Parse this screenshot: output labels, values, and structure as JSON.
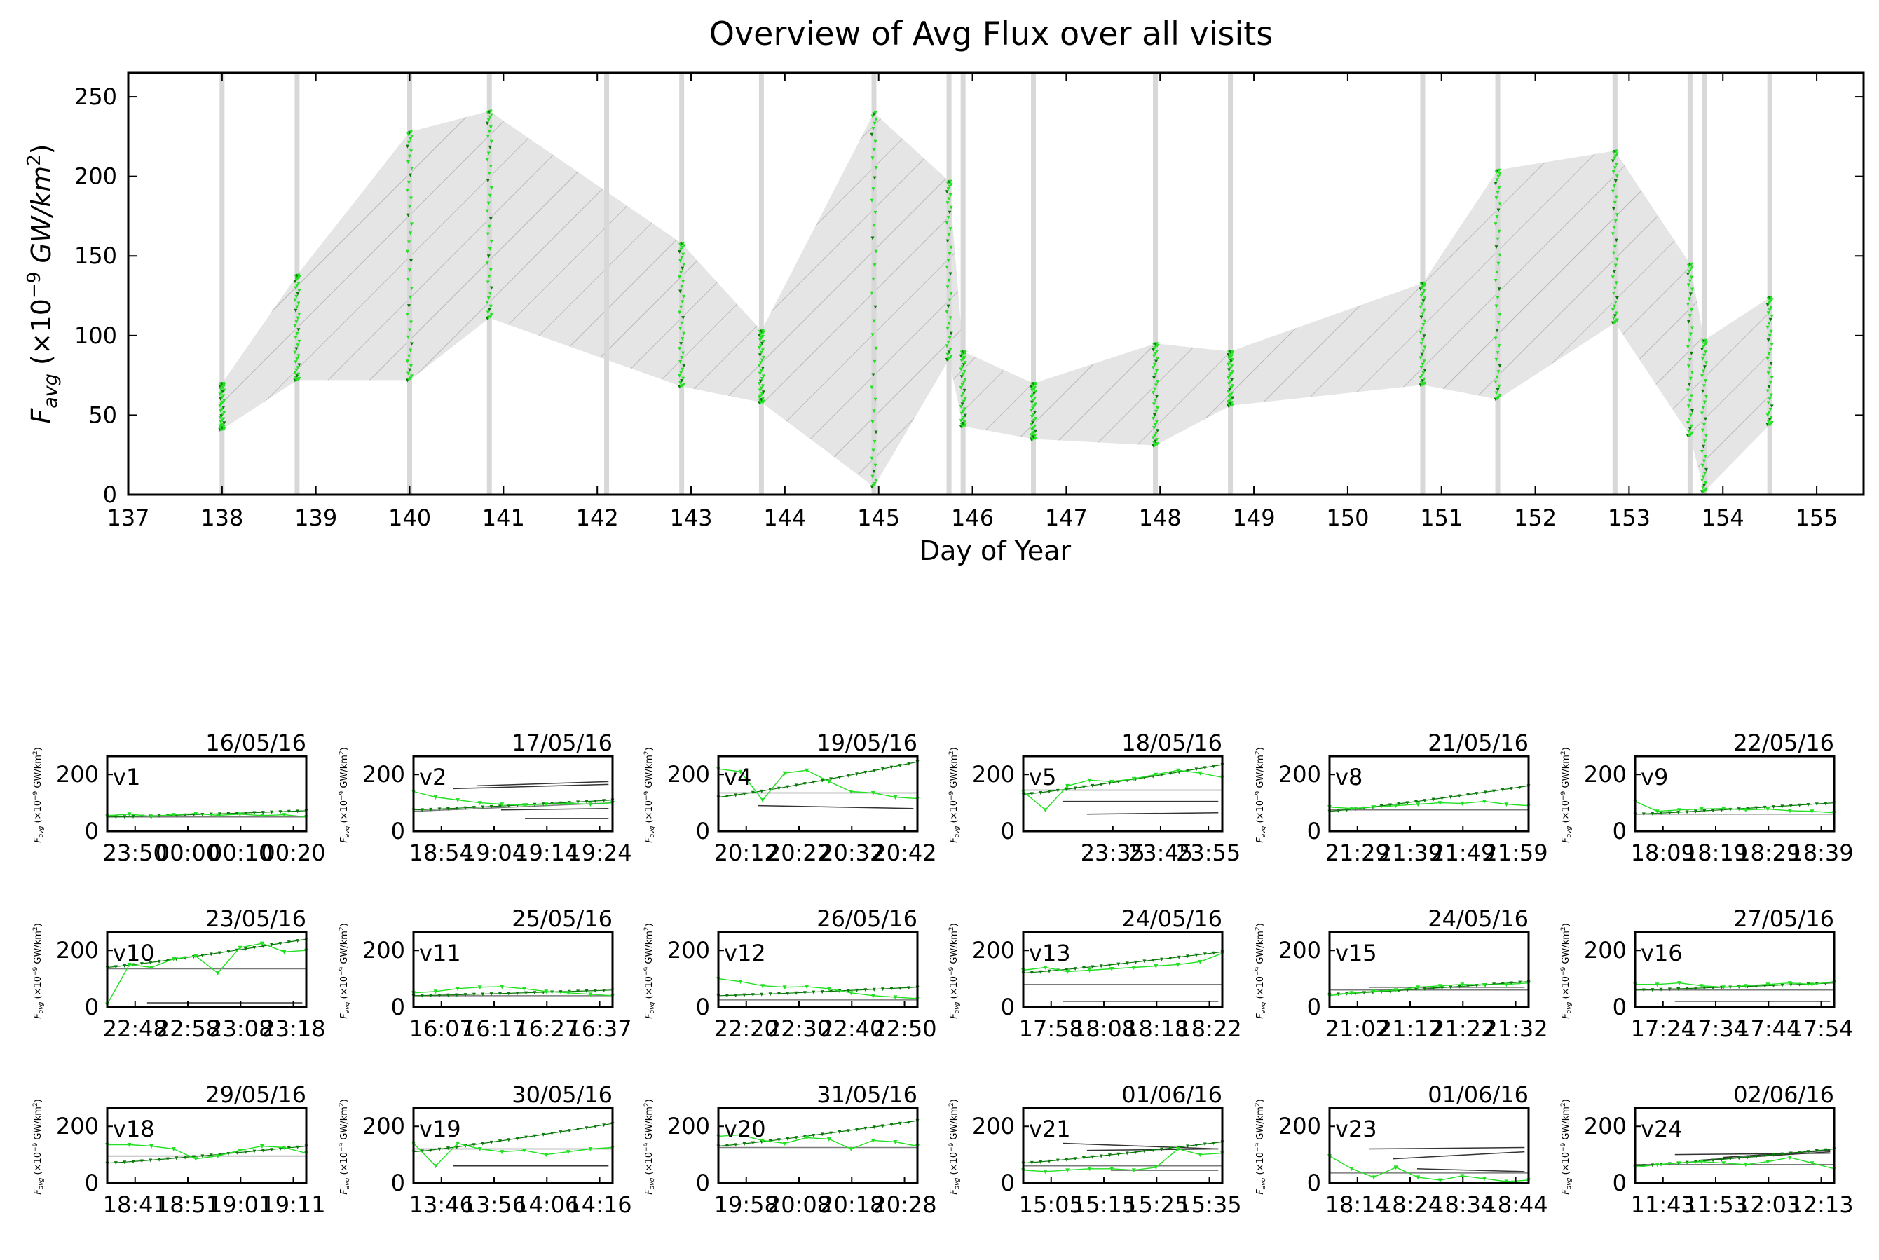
{
  "colors": {
    "marker": "#22e022",
    "marker_dark": "#0a7a0a",
    "band": "#e5e5e5",
    "hatch": "#b4b4b4",
    "visit_line": "#d8d8d8",
    "ref_line": "#333333"
  },
  "chart_data": [
    {
      "type": "scatter",
      "title": "Overview of Avg Flux over all visits",
      "xlabel": "Day of Year",
      "ylabel": "F_avg (×10^-9 GW/km^2)",
      "xlim": [
        137,
        155.5
      ],
      "ylim": [
        0,
        265
      ],
      "xticks": [
        "137",
        "138",
        "139",
        "140",
        "141",
        "142",
        "143",
        "144",
        "145",
        "146",
        "147",
        "148",
        "149",
        "150",
        "151",
        "152",
        "153",
        "154",
        "155"
      ],
      "yticks": [
        "0",
        "50",
        "100",
        "150",
        "200",
        "250"
      ],
      "visit_days": [
        138.0,
        138.8,
        140.0,
        140.85,
        142.1,
        142.9,
        143.75,
        144.95,
        145.75,
        145.9,
        146.65,
        147.95,
        148.75,
        150.8,
        151.6,
        152.85,
        153.65,
        153.8,
        154.5
      ],
      "points": [
        {
          "day": 138.0,
          "min": 41,
          "max": 70
        },
        {
          "day": 138.8,
          "min": 72,
          "max": 138
        },
        {
          "day": 140.0,
          "min": 72,
          "max": 228
        },
        {
          "day": 140.85,
          "min": 111,
          "max": 241
        },
        {
          "day": 142.9,
          "min": 68,
          "max": 158
        },
        {
          "day": 143.75,
          "min": 58,
          "max": 103
        },
        {
          "day": 144.95,
          "min": 5,
          "max": 240
        },
        {
          "day": 145.75,
          "min": 85,
          "max": 197
        },
        {
          "day": 145.9,
          "min": 43,
          "max": 90
        },
        {
          "day": 146.65,
          "min": 35,
          "max": 70
        },
        {
          "day": 147.95,
          "min": 31,
          "max": 95
        },
        {
          "day": 148.75,
          "min": 56,
          "max": 90
        },
        {
          "day": 150.8,
          "min": 69,
          "max": 133
        },
        {
          "day": 151.6,
          "min": 60,
          "max": 204
        },
        {
          "day": 152.85,
          "min": 108,
          "max": 216
        },
        {
          "day": 153.65,
          "min": 37,
          "max": 145
        },
        {
          "day": 153.8,
          "min": 2,
          "max": 97
        },
        {
          "day": 154.5,
          "min": 44,
          "max": 124
        }
      ]
    },
    {
      "type": "line",
      "ylabel": "F_avg (×10^-9 GW/km^2)",
      "ylim": [
        0,
        265
      ],
      "yticks": [
        "0",
        "200"
      ],
      "panels": [
        {
          "visit": "v1",
          "date": "16/05/16",
          "xticks": [
            "23:50",
            "00:00",
            "00:10",
            "00:20"
          ],
          "rise": [
            50,
            72
          ],
          "wiggle": [
            55,
            60,
            52,
            58,
            62,
            56,
            60,
            55,
            58,
            50
          ],
          "refs": [
            [
              50,
              50
            ]
          ],
          "gray": []
        },
        {
          "visit": "v2",
          "date": "17/05/16",
          "xticks": [
            "18:54",
            "19:04",
            "19:14",
            "19:24"
          ],
          "rise": [
            75,
            110
          ],
          "wiggle": [
            140,
            120,
            110,
            100,
            95,
            92,
            95,
            98,
            95,
            100
          ],
          "refs": [
            [
              70,
              100
            ]
          ],
          "gray": [
            [
              150,
              165
            ],
            [
              160,
              175
            ],
            [
              75,
              80
            ],
            [
              45,
              45
            ]
          ]
        },
        {
          "visit": "v4",
          "date": "19/05/16",
          "xticks": [
            "20:12",
            "20:22",
            "20:32",
            "20:42"
          ],
          "rise": [
            120,
            245
          ],
          "wiggle": [
            220,
            210,
            110,
            205,
            215,
            175,
            140,
            135,
            120,
            115
          ],
          "refs": [
            [
              135,
              135
            ]
          ],
          "gray": [
            [
              90,
              80
            ]
          ]
        },
        {
          "visit": "v5",
          "date": "18/05/16",
          "xticks": [
            "23:35",
            "23:45",
            "23:55"
          ],
          "rise": [
            130,
            235
          ],
          "wiggle": [
            140,
            75,
            160,
            180,
            175,
            185,
            200,
            215,
            205,
            190
          ],
          "refs": [
            [
              145,
              145
            ]
          ],
          "gray": [
            [
              105,
              105
            ],
            [
              60,
              65
            ]
          ]
        },
        {
          "visit": "v8",
          "date": "21/05/16",
          "xticks": [
            "21:29",
            "21:39",
            "21:49",
            "21:59"
          ],
          "rise": [
            70,
            160
          ],
          "wiggle": [
            85,
            80,
            85,
            90,
            95,
            100,
            98,
            105,
            95,
            90
          ],
          "refs": [
            [
              75,
              75
            ]
          ],
          "gray": []
        },
        {
          "visit": "v9",
          "date": "22/05/16",
          "xticks": [
            "18:09",
            "18:19",
            "18:29",
            "18:39"
          ],
          "rise": [
            60,
            100
          ],
          "wiggle": [
            105,
            70,
            75,
            78,
            80,
            75,
            78,
            72,
            70,
            65
          ],
          "refs": [
            [
              60,
              60
            ]
          ],
          "gray": []
        },
        {
          "visit": "v10",
          "date": "23/05/16",
          "xticks": [
            "22:48",
            "22:58",
            "23:08",
            "23:18"
          ],
          "rise": [
            140,
            240
          ],
          "wiggle": [
            10,
            150,
            140,
            170,
            180,
            120,
            210,
            225,
            195,
            200
          ],
          "refs": [
            [
              135,
              135
            ]
          ],
          "gray": [
            [
              15,
              15
            ]
          ]
        },
        {
          "visit": "v11",
          "date": "25/05/16",
          "xticks": [
            "16:07",
            "16:17",
            "16:27",
            "16:37"
          ],
          "rise": [
            40,
            60
          ],
          "wiggle": [
            50,
            55,
            65,
            70,
            72,
            65,
            55,
            50,
            45,
            40
          ],
          "refs": [
            [
              40,
              40
            ]
          ],
          "gray": []
        },
        {
          "visit": "v12",
          "date": "26/05/16",
          "xticks": [
            "22:20",
            "22:30",
            "22:40",
            "22:50"
          ],
          "rise": [
            40,
            70
          ],
          "wiggle": [
            100,
            90,
            75,
            70,
            72,
            65,
            50,
            40,
            35,
            30
          ],
          "refs": [
            [
              25,
              25
            ]
          ],
          "gray": []
        },
        {
          "visit": "v13",
          "date": "24/05/16",
          "xticks": [
            "17:58",
            "18:08",
            "18:18",
            "18:22"
          ],
          "rise": [
            120,
            195
          ],
          "wiggle": [
            130,
            140,
            125,
            130,
            135,
            140,
            145,
            150,
            160,
            190
          ],
          "refs": [
            [
              80,
              80
            ]
          ],
          "gray": [
            [
              20,
              20
            ]
          ]
        },
        {
          "visit": "v15",
          "date": "24/05/16",
          "xticks": [
            "21:02",
            "21:12",
            "21:22",
            "21:32"
          ],
          "rise": [
            45,
            90
          ],
          "wiggle": [
            40,
            50,
            55,
            60,
            70,
            75,
            80,
            78,
            80,
            85
          ],
          "refs": [
            [
              60,
              60
            ]
          ],
          "gray": [
            [
              70,
              70
            ]
          ]
        },
        {
          "visit": "v16",
          "date": "27/05/16",
          "xticks": [
            "17:24",
            "17:34",
            "17:44",
            "17:54"
          ],
          "rise": [
            60,
            85
          ],
          "wiggle": [
            80,
            80,
            85,
            75,
            70,
            75,
            80,
            85,
            80,
            90
          ],
          "refs": [
            [
              60,
              60
            ]
          ],
          "gray": [
            [
              20,
              20
            ]
          ]
        },
        {
          "visit": "v18",
          "date": "29/05/16",
          "xticks": [
            "18:41",
            "18:51",
            "19:01",
            "19:11"
          ],
          "rise": [
            70,
            130
          ],
          "wiggle": [
            135,
            135,
            130,
            120,
            85,
            95,
            115,
            130,
            125,
            105
          ],
          "refs": [
            [
              95,
              95
            ]
          ],
          "gray": []
        },
        {
          "visit": "v19",
          "date": "30/05/16",
          "xticks": [
            "13:46",
            "13:56",
            "14:06",
            "14:16"
          ],
          "rise": [
            110,
            210
          ],
          "wiggle": [
            140,
            60,
            140,
            120,
            110,
            115,
            100,
            110,
            120,
            125
          ],
          "refs": [
            [
              120,
              120
            ]
          ],
          "gray": [
            [
              60,
              60
            ]
          ]
        },
        {
          "visit": "v20",
          "date": "31/05/16",
          "xticks": [
            "19:58",
            "20:08",
            "20:18",
            "20:28"
          ],
          "rise": [
            130,
            220
          ],
          "wiggle": [
            165,
            170,
            150,
            140,
            160,
            155,
            120,
            150,
            145,
            130
          ],
          "refs": [
            [
              125,
              125
            ]
          ],
          "gray": []
        },
        {
          "visit": "v21",
          "date": "01/06/16",
          "xticks": [
            "15:05",
            "15:15",
            "15:25",
            "15:35"
          ],
          "rise": [
            70,
            145
          ],
          "wiggle": [
            45,
            40,
            45,
            50,
            50,
            45,
            55,
            120,
            100,
            105
          ],
          "refs": [
            [
              60,
              60
            ]
          ],
          "gray": [
            [
              140,
              120
            ],
            [
              115,
              120
            ],
            [
              45,
              45
            ]
          ]
        },
        {
          "visit": "v23",
          "date": "01/06/16",
          "xticks": [
            "18:14",
            "18:24",
            "18:34",
            "18:44"
          ],
          "rise": [
            0,
            0
          ],
          "wiggle": [
            95,
            50,
            20,
            55,
            20,
            10,
            25,
            15,
            5,
            10
          ],
          "refs": [
            [
              35,
              35
            ]
          ],
          "gray": [
            [
              120,
              125
            ],
            [
              85,
              110
            ],
            [
              50,
              40
            ]
          ]
        },
        {
          "visit": "v24",
          "date": "02/06/16",
          "xticks": [
            "11:43",
            "11:53",
            "12:03",
            "12:13"
          ],
          "rise": [
            60,
            120
          ],
          "wiggle": [
            55,
            65,
            70,
            75,
            70,
            65,
            75,
            90,
            70,
            50
          ],
          "refs": [
            [
              65,
              65
            ]
          ],
          "gray": [
            [
              100,
              105
            ],
            [
              80,
              110
            ],
            [
              90,
              115
            ]
          ]
        }
      ]
    }
  ]
}
